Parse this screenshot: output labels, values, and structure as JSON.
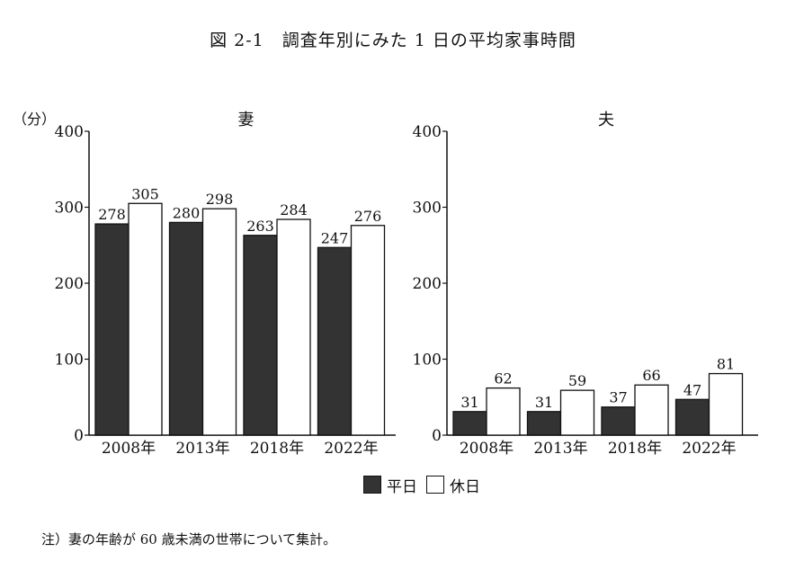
{
  "title": "図 2-1　調査年別にみた 1 日の平均家事時間",
  "note": "注）妻の年齢が 60 歳未満の世帯について集計。",
  "legend": [
    {
      "name": "平日",
      "color": "#333333"
    },
    {
      "name": "休日",
      "color": "#ffffff"
    }
  ],
  "chart_data": [
    {
      "type": "bar",
      "title": "妻",
      "ylabel": "（分）",
      "ylim": [
        0,
        400
      ],
      "yticks": [
        0,
        100,
        200,
        300,
        400
      ],
      "categories": [
        "2008年",
        "2013年",
        "2018年",
        "2022年"
      ],
      "series": [
        {
          "name": "平日",
          "color": "#333333",
          "values": [
            278,
            280,
            263,
            247
          ]
        },
        {
          "name": "休日",
          "color": "#ffffff",
          "values": [
            305,
            298,
            284,
            276
          ]
        }
      ]
    },
    {
      "type": "bar",
      "title": "夫",
      "ylabel": "",
      "ylim": [
        0,
        400
      ],
      "yticks": [
        0,
        100,
        200,
        300,
        400
      ],
      "categories": [
        "2008年",
        "2013年",
        "2018年",
        "2022年"
      ],
      "series": [
        {
          "name": "平日",
          "color": "#333333",
          "values": [
            31,
            31,
            37,
            47
          ]
        },
        {
          "name": "休日",
          "color": "#ffffff",
          "values": [
            62,
            59,
            66,
            81
          ]
        }
      ]
    }
  ]
}
